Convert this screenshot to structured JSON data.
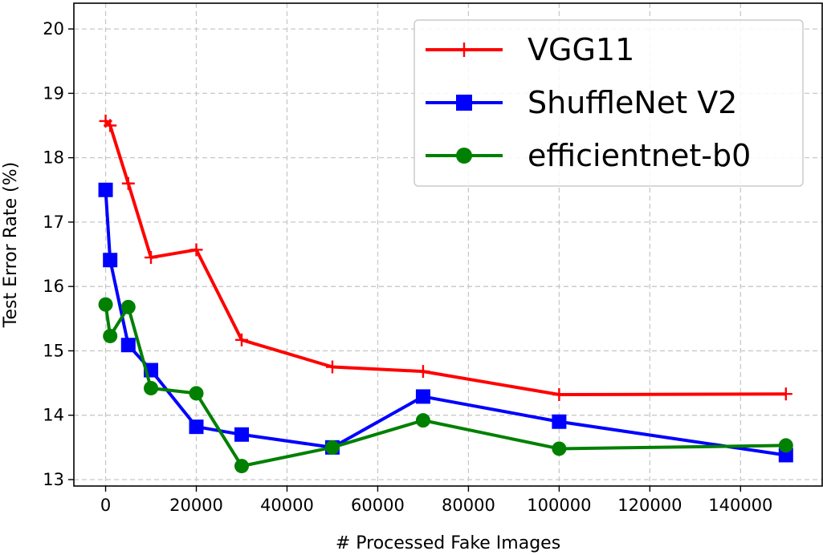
{
  "chart_data": {
    "type": "line",
    "title": "",
    "xlabel": "# Processed Fake Images",
    "ylabel": "Test Error Rate (%)",
    "xlim": [
      -7000,
      158000
    ],
    "ylim": [
      12.9,
      20.4
    ],
    "xticks": [
      0,
      20000,
      40000,
      60000,
      80000,
      100000,
      120000,
      140000
    ],
    "xtick_labels": [
      "0",
      "20000",
      "40000",
      "60000",
      "80000",
      "100000",
      "120000",
      "140000"
    ],
    "yticks": [
      13,
      14,
      15,
      16,
      17,
      18,
      19,
      20
    ],
    "ytick_labels": [
      "13",
      "14",
      "15",
      "16",
      "17",
      "18",
      "19",
      "20"
    ],
    "grid": true,
    "legend_position": "top-right",
    "series": [
      {
        "name": "VGG11",
        "color": "#ff0000",
        "marker": "plus",
        "x": [
          0,
          1000,
          5000,
          10000,
          20000,
          30000,
          50000,
          70000,
          100000,
          150000
        ],
        "y": [
          18.57,
          18.5,
          17.6,
          16.45,
          16.57,
          15.17,
          14.75,
          14.68,
          14.32,
          14.33
        ]
      },
      {
        "name": "ShuffleNet V2",
        "color": "#0000ff",
        "marker": "square",
        "x": [
          0,
          1000,
          5000,
          10000,
          20000,
          30000,
          50000,
          70000,
          100000,
          150000
        ],
        "y": [
          17.5,
          16.41,
          15.09,
          14.7,
          13.82,
          13.7,
          13.5,
          14.29,
          13.9,
          13.38
        ]
      },
      {
        "name": "efficientnet-b0",
        "color": "#008000",
        "marker": "circle",
        "x": [
          0,
          1000,
          5000,
          10000,
          20000,
          30000,
          50000,
          70000,
          100000,
          150000
        ],
        "y": [
          15.72,
          15.23,
          15.68,
          14.42,
          14.34,
          13.21,
          13.5,
          13.92,
          13.48,
          13.53
        ]
      }
    ]
  }
}
